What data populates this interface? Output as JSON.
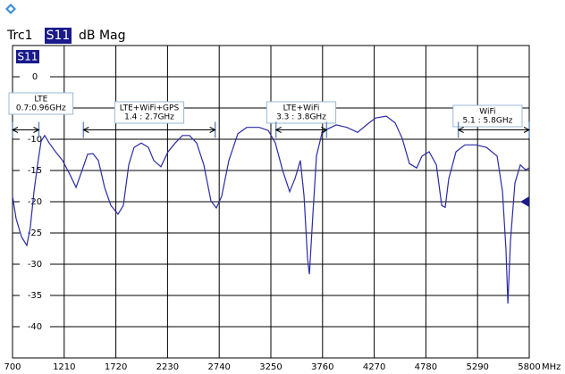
{
  "chart_data": {
    "type": "line",
    "trace": "Trc1",
    "parameter": "S11",
    "format": "dB Mag",
    "x_unit": "MHz",
    "x": [
      700,
      735,
      788,
      841,
      876,
      912,
      947,
      982,
      1018,
      1062,
      1124,
      1194,
      1265,
      1327,
      1388,
      1441,
      1494,
      1547,
      1609,
      1671,
      1741,
      1794,
      1847,
      1900,
      1971,
      2041,
      2094,
      2165,
      2235,
      2306,
      2377,
      2447,
      2518,
      2588,
      2659,
      2712,
      2765,
      2835,
      2924,
      3012,
      3135,
      3224,
      3294,
      3365,
      3435,
      3488,
      3541,
      3577,
      3612,
      3630,
      3665,
      3700,
      3753,
      3806,
      3894,
      4000,
      4106,
      4194,
      4283,
      4389,
      4477,
      4547,
      4618,
      4689,
      4741,
      4812,
      4883,
      4936,
      4971,
      5006,
      5077,
      5165,
      5271,
      5377,
      5483,
      5536,
      5571,
      5589,
      5615,
      5659,
      5712,
      5765,
      5800
    ],
    "series": [
      {
        "name": "S11",
        "color": "#2a2aa8",
        "values": [
          -19.1,
          -22.7,
          -25.6,
          -27,
          -24.1,
          -18.4,
          -14.1,
          -10.3,
          -9.4,
          -10.6,
          -12,
          -13.4,
          -15.6,
          -17.7,
          -14.9,
          -12.4,
          -12.3,
          -13.4,
          -17.7,
          -20.6,
          -22,
          -20.6,
          -14.1,
          -11.3,
          -10.6,
          -11.3,
          -13.4,
          -14.4,
          -12,
          -10.6,
          -9.4,
          -9.4,
          -10.6,
          -14.1,
          -19.9,
          -21,
          -19.1,
          -13.4,
          -9.1,
          -8.1,
          -8.1,
          -8.6,
          -10.6,
          -14.9,
          -18.4,
          -16.3,
          -13.4,
          -19.1,
          -29.1,
          -31.6,
          -22,
          -12.7,
          -9.1,
          -8.4,
          -7.7,
          -8.1,
          -8.9,
          -7.7,
          -6.6,
          -6.3,
          -7.4,
          -9.9,
          -13.9,
          -14.6,
          -12.7,
          -12,
          -14.1,
          -20.6,
          -20.9,
          -16.3,
          -12,
          -10.9,
          -10.9,
          -11.3,
          -12.7,
          -18.4,
          -27.7,
          -36.3,
          -26.3,
          -17,
          -14.1,
          -14.9,
          -14.6
        ]
      }
    ],
    "xlim": [
      700,
      5800
    ],
    "xticks": [
      700,
      1210,
      1720,
      2230,
      2740,
      3250,
      3760,
      4270,
      4780,
      5290,
      5800
    ],
    "ylim": [
      -45,
      5
    ],
    "yticks": [
      0,
      -5,
      -10,
      -15,
      -20,
      -25,
      -30,
      -35,
      -40
    ],
    "grid": true,
    "annotations": [
      {
        "lines": [
          "LTE",
          "0.7:0.96GHz"
        ],
        "range": [
          700,
          960
        ]
      },
      {
        "lines": [
          "LTE+WiFi+GPS",
          "1.4 : 2.7GHz"
        ],
        "range": [
          1400,
          2700
        ]
      },
      {
        "lines": [
          "LTE+WiFi",
          "3.3 : 3.8GHz"
        ],
        "range": [
          3300,
          3800
        ]
      },
      {
        "lines": [
          "WiFi",
          "5.1 : 5.8GHz"
        ],
        "range": [
          5100,
          5800
        ]
      }
    ]
  }
}
